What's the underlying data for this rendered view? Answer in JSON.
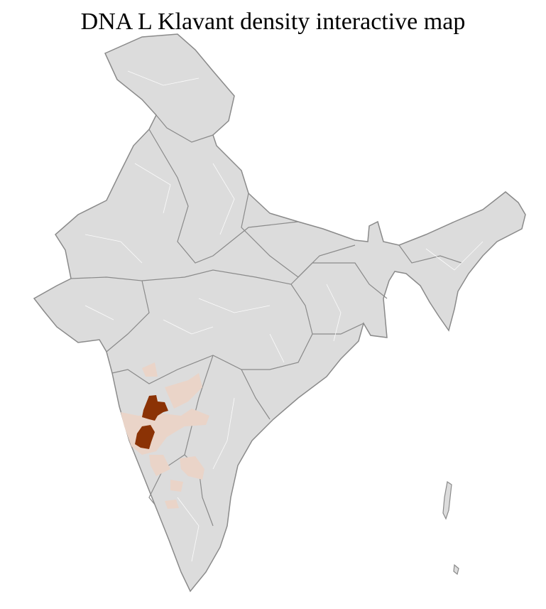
{
  "title": "DNA L Klavant density interactive map",
  "colors": {
    "base": "#dcdcdc",
    "district_border": "#ffffff",
    "state_border": "#8a8a8a",
    "low_density": "#ead4c8",
    "high_density": "#8b3205"
  }
}
